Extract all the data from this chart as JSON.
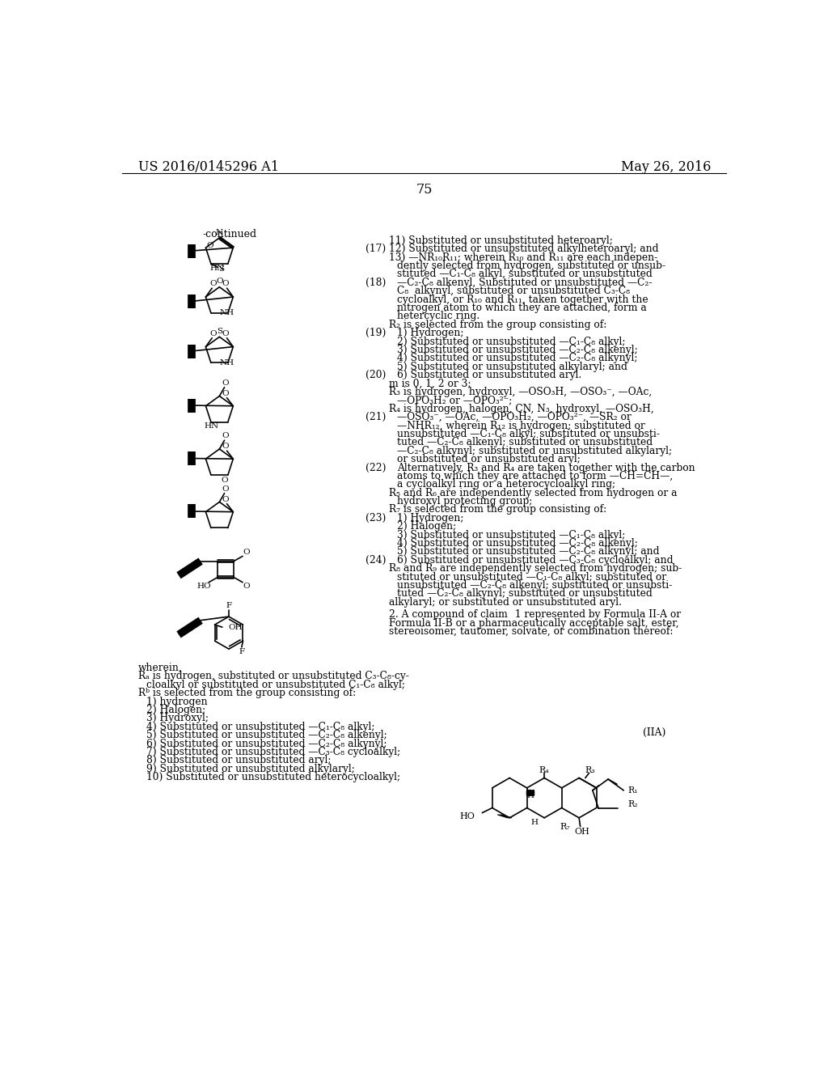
{
  "background_color": "#ffffff",
  "header_left": "US 2016/0145296 A1",
  "header_right": "May 26, 2016",
  "page_number": "75"
}
